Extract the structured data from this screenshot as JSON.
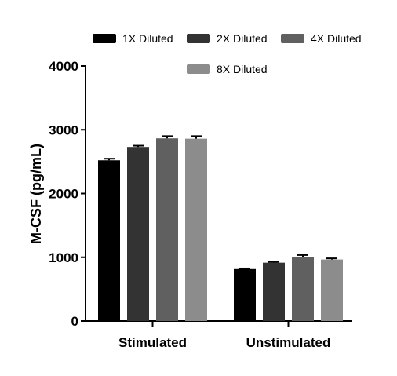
{
  "chart_data": {
    "type": "bar",
    "title": "",
    "xlabel": "",
    "ylabel": "M-CSF (pg/mL)",
    "ylim": [
      0,
      4000
    ],
    "yticks": [
      0,
      1000,
      2000,
      3000,
      4000
    ],
    "categories": [
      "Stimulated",
      "Unstimulated"
    ],
    "series": [
      {
        "name": "1X Diluted",
        "color": "#000000",
        "values": [
          2520,
          815
        ],
        "errors": [
          25,
          10
        ]
      },
      {
        "name": "2X Diluted",
        "color": "#333333",
        "values": [
          2730,
          915
        ],
        "errors": [
          20,
          12
        ]
      },
      {
        "name": "4X Diluted",
        "color": "#606060",
        "values": [
          2865,
          1000
        ],
        "errors": [
          35,
          35
        ]
      },
      {
        "name": "8X Diluted",
        "color": "#8c8c8c",
        "values": [
          2860,
          965
        ],
        "errors": [
          40,
          18
        ]
      }
    ],
    "legend_position": "top",
    "grid": false
  }
}
